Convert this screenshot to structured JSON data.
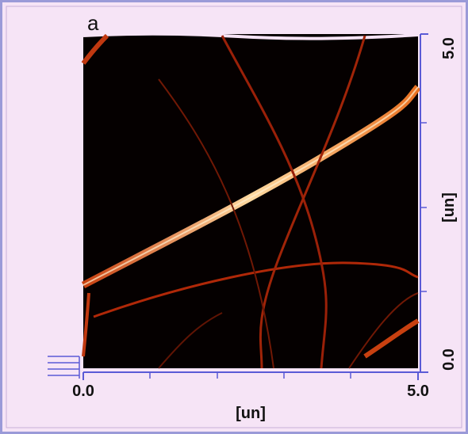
{
  "chart_data": {
    "type": "image",
    "title": "a",
    "xlabel": "[un]",
    "ylabel": "[un]",
    "xlim": [
      0,
      5
    ],
    "ylim": [
      0,
      5
    ],
    "xticks": [
      {
        "value": 0,
        "label": "0.0"
      },
      {
        "value": 5,
        "label": "5.0"
      }
    ],
    "yticks": [
      {
        "value": 0,
        "label": "0.0"
      },
      {
        "value": 5,
        "label": "5.0"
      }
    ],
    "axis_color": "#5a5ad6"
  }
}
